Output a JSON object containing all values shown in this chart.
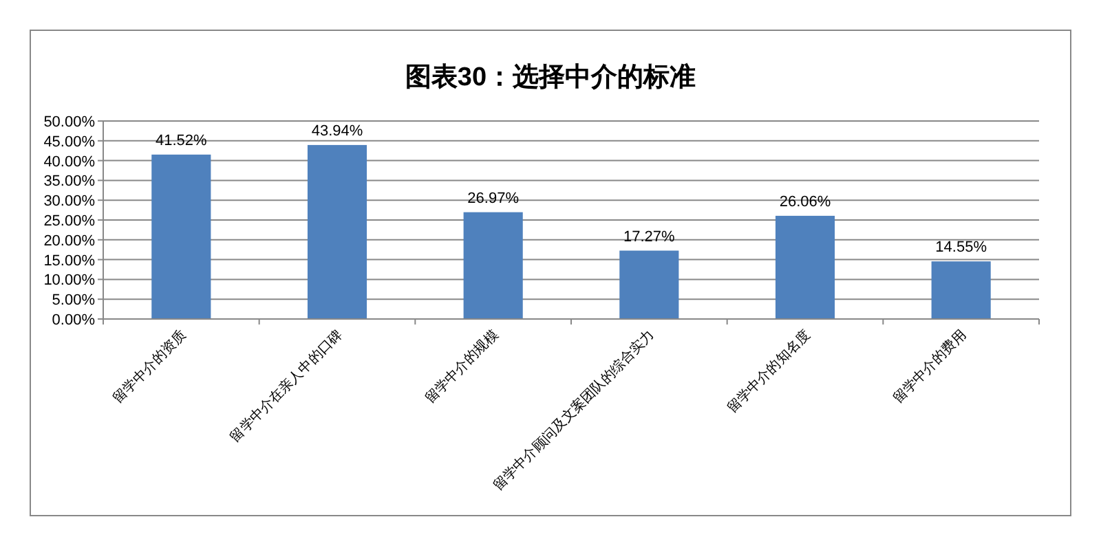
{
  "chart_data": {
    "type": "bar",
    "title": "图表30：选择中介的标准",
    "categories": [
      "留学中介的资质",
      "留学中介在亲人中的口碑",
      "留学中介的规模",
      "留学中介顾问及文案团队的综合实力",
      "留学中介的知名度",
      "留学中介的费用"
    ],
    "values": [
      41.52,
      43.94,
      26.97,
      17.27,
      26.06,
      14.55
    ],
    "value_labels": [
      "41.52%",
      "43.94%",
      "26.97%",
      "17.27%",
      "26.06%",
      "14.55%"
    ],
    "color": "#4f81bd",
    "ylim": [
      0,
      50
    ],
    "yticks": [
      {
        "value": 0,
        "label": "0.00%"
      },
      {
        "value": 5,
        "label": "5.00%"
      },
      {
        "value": 10,
        "label": "10.00%"
      },
      {
        "value": 15,
        "label": "15.00%"
      },
      {
        "value": 20,
        "label": "20.00%"
      },
      {
        "value": 25,
        "label": "25.00%"
      },
      {
        "value": 30,
        "label": "30.00%"
      },
      {
        "value": 35,
        "label": "35.00%"
      },
      {
        "value": 40,
        "label": "40.00%"
      },
      {
        "value": 45,
        "label": "45.00%"
      },
      {
        "value": 50,
        "label": "50.00%"
      }
    ],
    "grid": "y"
  }
}
